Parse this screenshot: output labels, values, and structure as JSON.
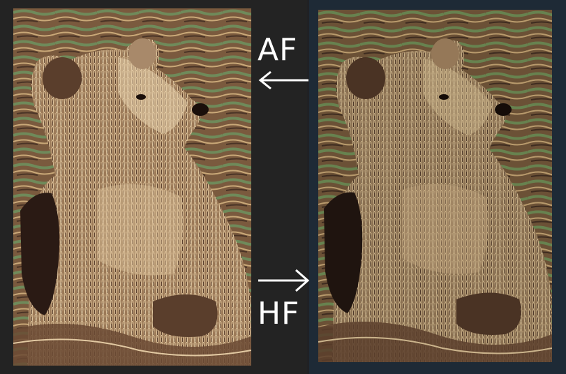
{
  "labels": {
    "af": "AF",
    "hf": "HF"
  },
  "arrows": {
    "af_direction": "left",
    "hf_direction": "right"
  },
  "images": {
    "left": "bear-photo-posterized",
    "right": "bear-photo-posterized-darker"
  },
  "colors": {
    "background": "#202124",
    "text": "#ffffff",
    "sepia_light": "#e8d3b0",
    "sepia_mid": "#8a6a4c",
    "sepia_dark": "#2a1a14",
    "water_green": "#6f8a5a"
  }
}
